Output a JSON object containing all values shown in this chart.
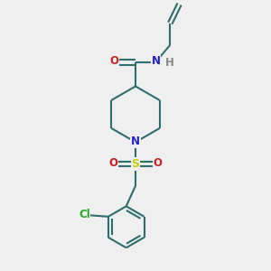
{
  "background_color": "#efefef",
  "bond_color": "#2d6e6e",
  "nitrogen_color": "#2020cc",
  "oxygen_color": "#cc2020",
  "sulfur_color": "#cccc00",
  "chlorine_color": "#20aa20",
  "hydrogen_color": "#888888",
  "line_width": 1.5,
  "figsize": [
    3.0,
    3.0
  ],
  "dpi": 100,
  "xlim": [
    0,
    10
  ],
  "ylim": [
    0,
    10
  ]
}
